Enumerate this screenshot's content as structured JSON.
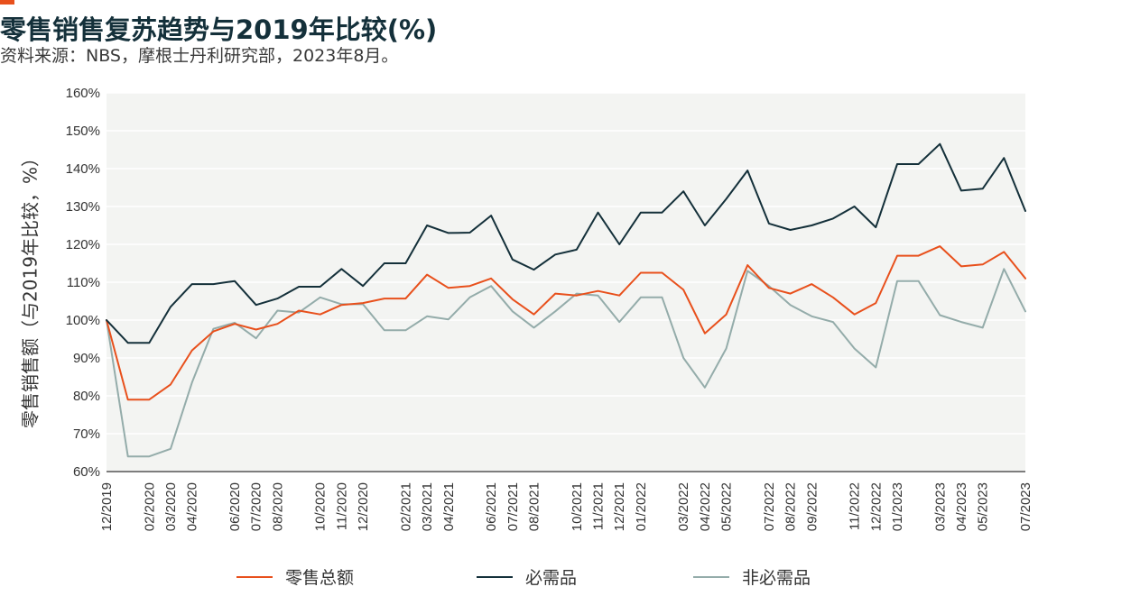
{
  "title": "零售销售复苏趋势与2019年比较(%)",
  "subtitle": "资料来源：NBS，摩根士丹利研究部，2023年8月。",
  "colors": {
    "accent": "#e8501c",
    "plot_bg": "#f3f4f2",
    "grid": "#ffffff",
    "axis": "#555555"
  },
  "chart_data": {
    "type": "line",
    "ylabel": "零售销售额（与2019年比较，%）",
    "ylim": [
      60,
      160
    ],
    "y_ticks": [
      "60%",
      "70%",
      "80%",
      "90%",
      "100%",
      "110%",
      "120%",
      "130%",
      "140%",
      "150%",
      "160%"
    ],
    "x": [
      "12/2019",
      "01/2020",
      "02/2020",
      "03/2020",
      "04/2020",
      "05/2020",
      "06/2020",
      "07/2020",
      "08/2020",
      "09/2020",
      "10/2020",
      "11/2020",
      "12/2020",
      "01/2021",
      "02/2021",
      "03/2021",
      "04/2021",
      "05/2021",
      "06/2021",
      "07/2021",
      "08/2021",
      "09/2021",
      "10/2021",
      "11/2021",
      "12/2021",
      "01/2022",
      "02/2022",
      "03/2022",
      "04/2022",
      "05/2022",
      "06/2022",
      "07/2022",
      "08/2022",
      "09/2022",
      "10/2022",
      "11/2022",
      "12/2022",
      "01/2023",
      "02/2023",
      "03/2023",
      "04/2023",
      "05/2023",
      "06/2023",
      "07/2023"
    ],
    "x_tick_labels": [
      "12/2019",
      "02/2020",
      "03/2020",
      "04/2020",
      "06/2020",
      "07/2020",
      "08/2020",
      "10/2020",
      "11/2020",
      "12/2020",
      "02/2021",
      "03/2021",
      "04/2021",
      "06/2021",
      "07/2021",
      "08/2021",
      "10/2021",
      "11/2021",
      "12/2021",
      "01/2022",
      "03/2022",
      "04/2022",
      "05/2022",
      "07/2022",
      "08/2022",
      "09/2022",
      "11/2022",
      "12/2022",
      "01/2023",
      "03/2023",
      "04/2023",
      "05/2023",
      "07/2023"
    ],
    "x_tick_indices": [
      0,
      2,
      3,
      4,
      6,
      7,
      8,
      10,
      11,
      12,
      14,
      15,
      16,
      18,
      19,
      20,
      22,
      23,
      24,
      25,
      27,
      28,
      29,
      31,
      32,
      33,
      35,
      36,
      37,
      39,
      40,
      41,
      43
    ],
    "series": [
      {
        "name": "零售总额",
        "color": "#e8501c",
        "values": [
          100,
          79,
          79,
          83,
          92,
          97,
          99,
          97.5,
          99,
          102.5,
          101.5,
          104,
          104.5,
          105.7,
          105.7,
          112,
          108.5,
          109,
          111,
          105.5,
          101.5,
          107,
          106.5,
          107.7,
          106.5,
          112.5,
          112.5,
          108,
          96.5,
          101.5,
          114.5,
          108.5,
          107,
          109.5,
          106,
          101.5,
          104.5,
          117,
          117,
          119.5,
          114.2,
          114.7,
          118,
          111
        ]
      },
      {
        "name": "必需品",
        "color": "#14303a",
        "values": [
          100,
          94,
          94,
          103.5,
          109.5,
          109.5,
          110.3,
          104,
          105.7,
          108.8,
          108.8,
          113.5,
          109,
          115,
          115,
          125,
          123,
          123.1,
          127.6,
          116,
          113.3,
          117.3,
          118.6,
          128.4,
          120,
          128.4,
          128.4,
          134,
          125,
          132,
          139.5,
          125.5,
          123.8,
          125,
          126.8,
          130,
          124.5,
          141.2,
          141.2,
          146.5,
          134.2,
          134.7,
          142.8,
          128.8
        ]
      },
      {
        "name": "非必需品",
        "color": "#94acaa",
        "values": [
          100,
          64,
          64,
          66,
          83.5,
          97.7,
          99.3,
          95.2,
          102.5,
          102,
          106,
          104.2,
          104.2,
          97.3,
          97.3,
          101,
          100.2,
          106,
          109,
          102.3,
          98,
          102.3,
          107,
          106.5,
          99.5,
          106,
          106,
          90,
          82.2,
          92.5,
          113,
          109,
          104,
          101,
          99.5,
          92.5,
          87.5,
          110.3,
          110.3,
          101.3,
          99.5,
          98,
          113.5,
          102.3
        ]
      }
    ],
    "legend_position": "bottom",
    "grid": true
  }
}
